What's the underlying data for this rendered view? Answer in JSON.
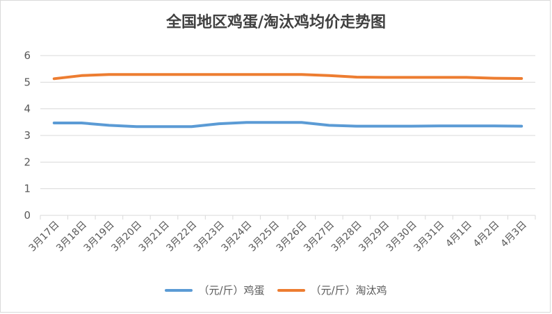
{
  "colors": {
    "egg": "#5b9bd5",
    "hen": "#ed7d31",
    "grid": "#d9d9d9"
  },
  "chart_data": {
    "type": "line",
    "title": "全国地区鸡蛋/淘汰鸡均价走势图",
    "categories": [
      "3月17日",
      "3月18日",
      "3月19日",
      "3月20日",
      "3月21日",
      "3月22日",
      "3月23日",
      "3月24日",
      "3月25日",
      "3月26日",
      "3月27日",
      "3月28日",
      "3月29日",
      "3月30日",
      "3月31日",
      "4月1日",
      "4月2日",
      "4月3日"
    ],
    "ylim": [
      0,
      6
    ],
    "yticks": [
      0,
      1,
      2,
      3,
      4,
      5,
      6
    ],
    "grid": true,
    "legend_position": "bottom",
    "series": [
      {
        "name": "（元/斤）鸡蛋",
        "color": "#5b9bd5",
        "values": [
          3.47,
          3.47,
          3.38,
          3.33,
          3.33,
          3.33,
          3.44,
          3.49,
          3.49,
          3.49,
          3.38,
          3.35,
          3.35,
          3.35,
          3.36,
          3.36,
          3.36,
          3.35
        ]
      },
      {
        "name": "（元/斤）淘汰鸡",
        "color": "#ed7d31",
        "values": [
          5.13,
          5.25,
          5.29,
          5.29,
          5.29,
          5.29,
          5.29,
          5.29,
          5.29,
          5.29,
          5.25,
          5.19,
          5.18,
          5.18,
          5.18,
          5.18,
          5.15,
          5.14
        ]
      }
    ]
  }
}
